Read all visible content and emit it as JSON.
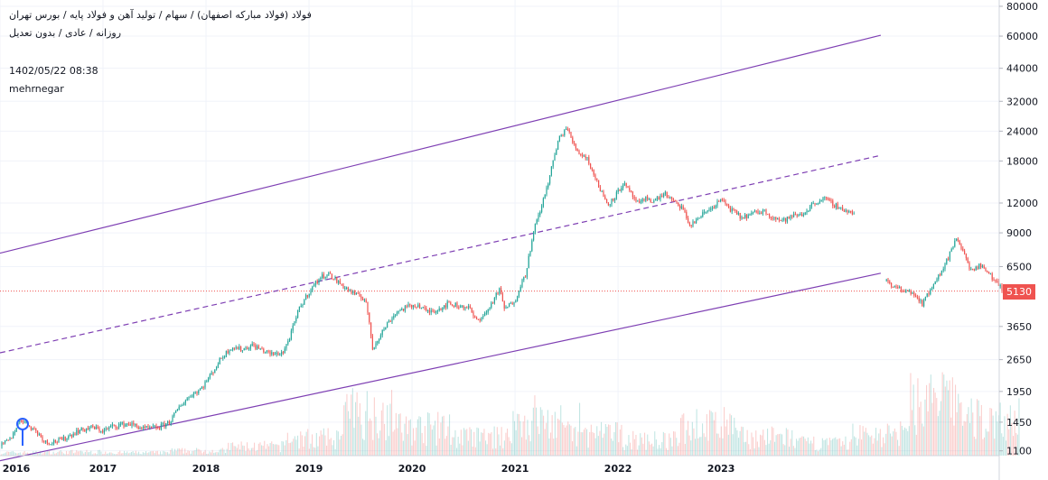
{
  "header": {
    "title": "فولاد (فولاد مبارکه اصفهان) / سهام / تولید آهن و فولاد پایه / بورس تهران",
    "subtitle": "روزانه / عادی / بدون تعدیل",
    "timestamp": "1402/05/22 08:38",
    "author": "mehrnegar"
  },
  "current_price": {
    "label": "5130",
    "value": 5130,
    "color": "#ef5350"
  },
  "colors": {
    "up": "#26a69a",
    "down": "#ef5350",
    "channel": "#7e3fb3"
  },
  "chart_data": {
    "type": "line",
    "scale": "log",
    "x_ticks": [
      "2016",
      "2017",
      "2018",
      "2019",
      "2020",
      "2021",
      "2022",
      "2023"
    ],
    "y_ticks": [
      1100,
      1450,
      1950,
      2650,
      3650,
      5130,
      6500,
      9000,
      12000,
      18000,
      24000,
      32000,
      44000,
      60000,
      80000
    ],
    "ylim": [
      1050,
      85000
    ],
    "xlim": [
      2016.0,
      2025.7
    ],
    "price_path": [
      [
        2016.0,
        1150
      ],
      [
        2016.1,
        1230
      ],
      [
        2016.2,
        1500
      ],
      [
        2016.35,
        1330
      ],
      [
        2016.45,
        1190
      ],
      [
        2016.6,
        1220
      ],
      [
        2016.75,
        1330
      ],
      [
        2016.9,
        1380
      ],
      [
        2017.0,
        1330
      ],
      [
        2017.1,
        1400
      ],
      [
        2017.25,
        1430
      ],
      [
        2017.4,
        1360
      ],
      [
        2017.55,
        1380
      ],
      [
        2017.65,
        1460
      ],
      [
        2017.75,
        1700
      ],
      [
        2017.85,
        1880
      ],
      [
        2017.95,
        2000
      ],
      [
        2018.05,
        2300
      ],
      [
        2018.15,
        2700
      ],
      [
        2018.25,
        3000
      ],
      [
        2018.35,
        2920
      ],
      [
        2018.45,
        3050
      ],
      [
        2018.55,
        2900
      ],
      [
        2018.65,
        2780
      ],
      [
        2018.75,
        2850
      ],
      [
        2018.82,
        3350
      ],
      [
        2018.9,
        4300
      ],
      [
        2019.0,
        5100
      ],
      [
        2019.1,
        5800
      ],
      [
        2019.18,
        6100
      ],
      [
        2019.28,
        5600
      ],
      [
        2019.38,
        5200
      ],
      [
        2019.45,
        4950
      ],
      [
        2019.55,
        4750
      ],
      [
        2019.62,
        2900
      ],
      [
        2019.65,
        3150
      ],
      [
        2019.75,
        3700
      ],
      [
        2019.85,
        4200
      ],
      [
        2019.95,
        4400
      ],
      [
        2020.05,
        4500
      ],
      [
        2020.15,
        4200
      ],
      [
        2020.25,
        4300
      ],
      [
        2020.35,
        4550
      ],
      [
        2020.45,
        4450
      ],
      [
        2020.55,
        4400
      ],
      [
        2020.62,
        3850
      ],
      [
        2020.72,
        4150
      ],
      [
        2020.8,
        4800
      ],
      [
        2020.85,
        5200
      ],
      [
        2020.9,
        4300
      ],
      [
        2021.0,
        4700
      ],
      [
        2021.05,
        5400
      ],
      [
        2021.1,
        6000
      ],
      [
        2021.15,
        7800
      ],
      [
        2021.2,
        9800
      ],
      [
        2021.28,
        12500
      ],
      [
        2021.35,
        16500
      ],
      [
        2021.42,
        22000
      ],
      [
        2021.5,
        25000
      ],
      [
        2021.56,
        21500
      ],
      [
        2021.62,
        19500
      ],
      [
        2021.7,
        18500
      ],
      [
        2021.8,
        14500
      ],
      [
        2021.9,
        11800
      ],
      [
        2021.98,
        13000
      ],
      [
        2022.05,
        14500
      ],
      [
        2022.12,
        13200
      ],
      [
        2022.2,
        11800
      ],
      [
        2022.28,
        12600
      ],
      [
        2022.35,
        12200
      ],
      [
        2022.45,
        13200
      ],
      [
        2022.55,
        12000
      ],
      [
        2022.62,
        11500
      ],
      [
        2022.7,
        9600
      ],
      [
        2022.8,
        10600
      ],
      [
        2022.9,
        11400
      ],
      [
        2023.0,
        12400
      ],
      [
        2023.1,
        11200
      ],
      [
        2023.2,
        10400
      ],
      [
        2023.32,
        10900
      ],
      [
        2023.42,
        11100
      ],
      [
        2023.5,
        10500
      ],
      [
        2023.6,
        10100
      ],
      [
        2023.7,
        10600
      ],
      [
        2023.8,
        10800
      ],
      [
        2023.9,
        12000
      ],
      [
        2024.0,
        12500
      ],
      [
        2024.1,
        11800
      ],
      [
        2024.2,
        11200
      ],
      [
        2024.3,
        10800
      ],
      [
        2024.35,
        null
      ],
      [
        2024.6,
        5700
      ],
      [
        2024.7,
        5300
      ],
      [
        2024.8,
        5050
      ],
      [
        2024.88,
        5000
      ],
      [
        2024.95,
        4500
      ],
      [
        2025.02,
        5100
      ],
      [
        2025.12,
        6000
      ],
      [
        2025.2,
        7000
      ],
      [
        2025.28,
        8500
      ],
      [
        2025.35,
        7400
      ],
      [
        2025.42,
        6300
      ],
      [
        2025.52,
        6600
      ],
      [
        2025.58,
        6200
      ],
      [
        2025.66,
        5700
      ],
      [
        2025.72,
        5300
      ],
      [
        2025.8,
        5150
      ],
      [
        2025.86,
        5200
      ],
      [
        2025.9,
        5130
      ]
    ],
    "volume_profile": [
      0.05,
      0.06,
      0.05,
      0.08,
      0.15,
      0.28,
      0.7,
      0.45,
      0.3,
      0.55,
      0.35,
      0.25,
      0.5,
      0.3,
      0.2,
      0.35,
      0.9,
      0.6
    ],
    "channel_lines": [
      {
        "style": "solid",
        "from": [
          2016.0,
          7400
        ],
        "to": [
          2024.55,
          60500
        ]
      },
      {
        "style": "dashed",
        "from": [
          2016.0,
          2830
        ],
        "to": [
          2024.55,
          19000
        ]
      },
      {
        "style": "solid",
        "from": [
          2016.0,
          1000
        ],
        "to": [
          2024.55,
          6100
        ]
      }
    ],
    "marker_icon": "pin-icon"
  }
}
